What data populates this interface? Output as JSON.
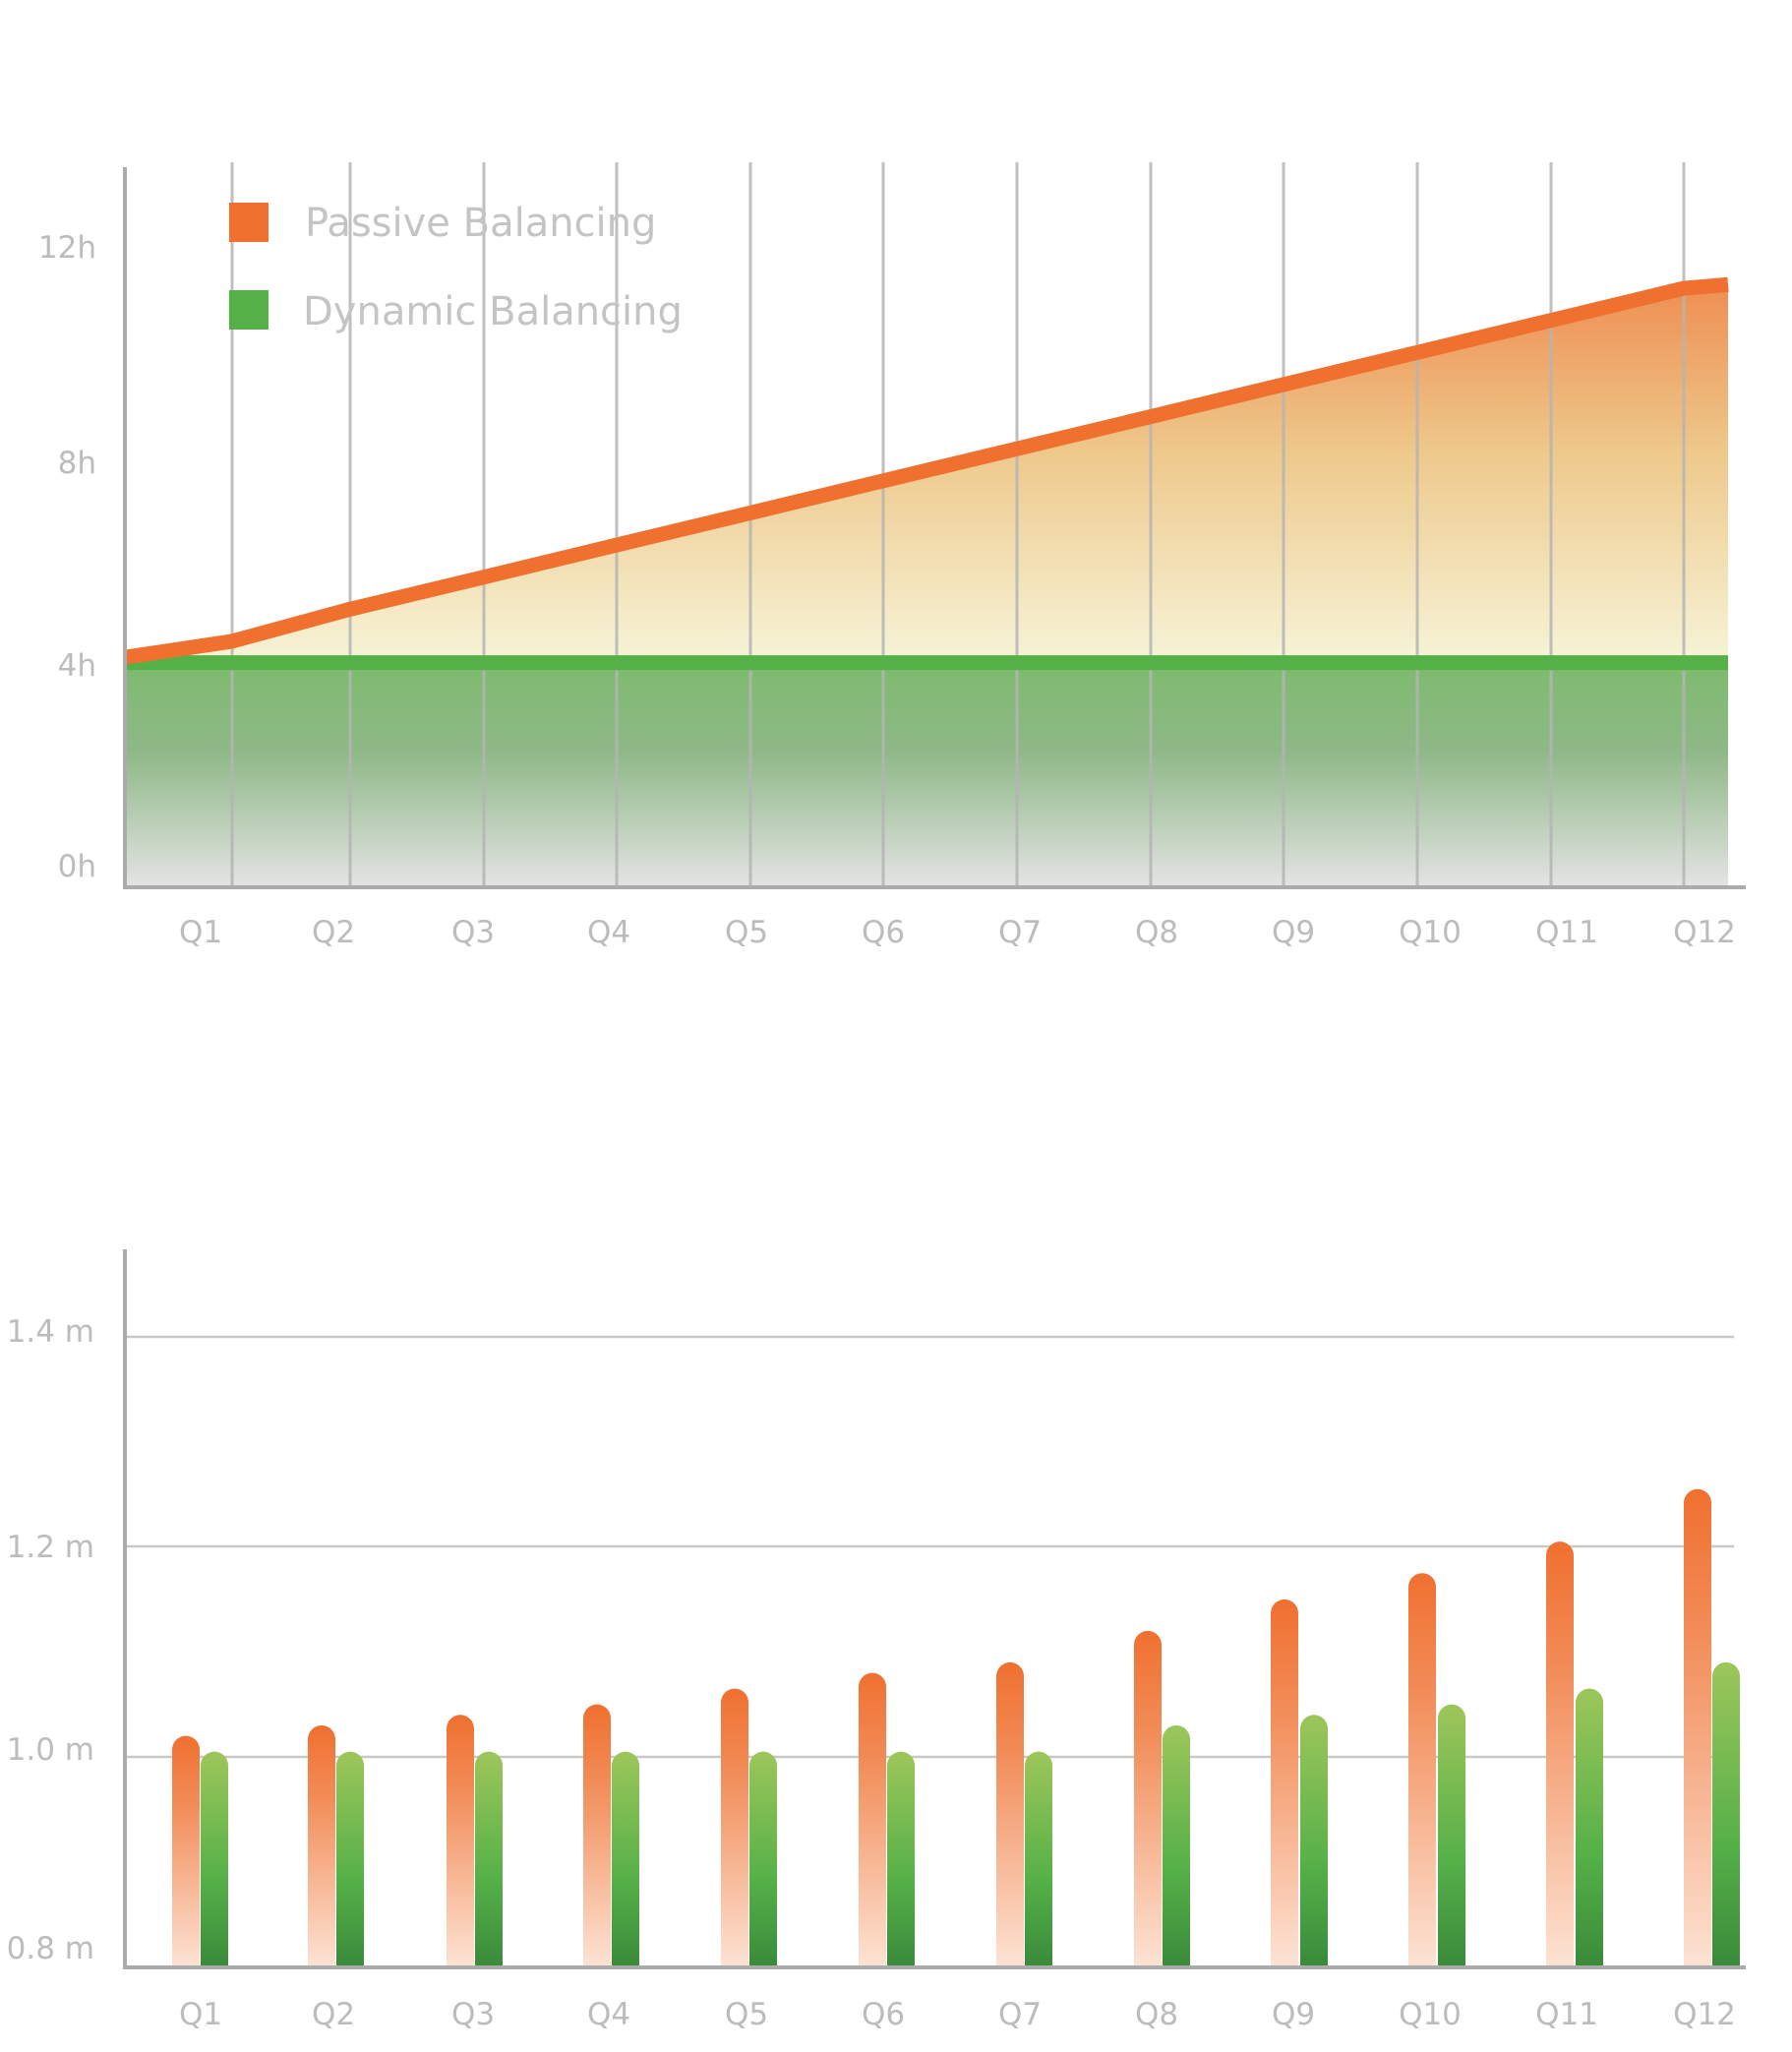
{
  "chart_data": [
    {
      "type": "area",
      "categories": [
        "Q1",
        "Q2",
        "Q3",
        "Q4",
        "Q5",
        "Q6",
        "Q7",
        "Q8",
        "Q9",
        "Q10",
        "Q11",
        "Q12"
      ],
      "y_ticks": [
        "0h",
        "4h",
        "8h",
        "12h"
      ],
      "ylim": [
        0,
        13.5
      ],
      "grid": "vertical",
      "legend_position": "top-left",
      "series": [
        {
          "name": "Passive Balancing",
          "color": "#f07030",
          "values": [
            4.6,
            5.2,
            5.8,
            6.4,
            7.0,
            7.6,
            8.2,
            8.8,
            9.4,
            10.0,
            10.6,
            11.2
          ]
        },
        {
          "name": "Dynamic Balancing",
          "color": "#55b048",
          "values": [
            4.2,
            4.2,
            4.2,
            4.2,
            4.2,
            4.2,
            4.2,
            4.2,
            4.2,
            4.2,
            4.2,
            4.2
          ]
        }
      ],
      "start_value": {
        "Passive Balancing": 4.3,
        "Dynamic Balancing": 4.2
      }
    },
    {
      "type": "bar",
      "categories": [
        "Q1",
        "Q2",
        "Q3",
        "Q4",
        "Q5",
        "Q6",
        "Q7",
        "Q8",
        "Q9",
        "Q10",
        "Q11",
        "Q12"
      ],
      "y_ticks": [
        "0.8 m",
        "1.0 m",
        "1.2 m",
        "1.4 m"
      ],
      "ylim": [
        0.8,
        1.48
      ],
      "grid": "horizontal",
      "series": [
        {
          "name": "Passive Balancing",
          "color": "#f07030",
          "values": [
            1.02,
            1.03,
            1.04,
            1.05,
            1.065,
            1.08,
            1.09,
            1.12,
            1.15,
            1.175,
            1.205,
            1.255
          ]
        },
        {
          "name": "Dynamic Balancing",
          "color": "#55b048",
          "values": [
            1.005,
            1.005,
            1.005,
            1.005,
            1.005,
            1.005,
            1.005,
            1.03,
            1.04,
            1.05,
            1.065,
            1.09
          ]
        }
      ]
    }
  ]
}
